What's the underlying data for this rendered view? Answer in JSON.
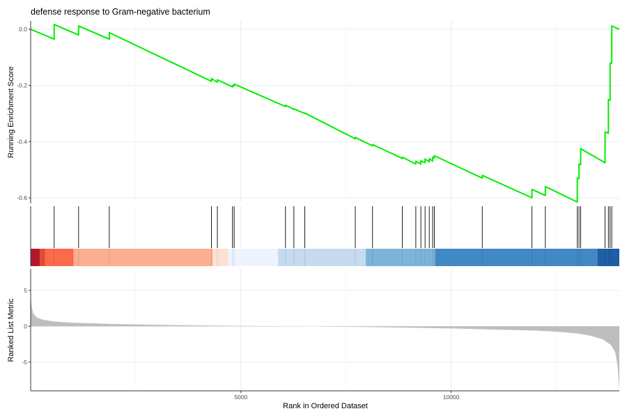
{
  "chart_data": {
    "type": "line",
    "title": "defense response to Gram-negative bacterium",
    "xlabel": "Rank in Ordered Dataset",
    "xlim": [
      0,
      14000
    ],
    "x_ticks": [
      5000,
      10000
    ],
    "grid": true,
    "enrichment_panel": {
      "ylabel": "Running Enrichment Score",
      "ylim": [
        -0.62,
        0.03
      ],
      "y_ticks": [
        "0.0",
        "-0.2",
        "-0.4",
        "-0.6"
      ],
      "line_color": "#00ee00",
      "series": [
        {
          "x": [
            0,
            560,
            560,
            1140,
            1140,
            1870,
            1870,
            4300,
            4300,
            4400,
            4440,
            4440,
            4800,
            4800,
            4840,
            4840,
            6060,
            6060,
            6260,
            6260,
            6520,
            6520,
            7720,
            7720,
            8130,
            8130,
            8840,
            8840,
            9160,
            9160,
            9280,
            9280,
            9380,
            9380,
            9480,
            9480,
            9560,
            9560,
            9600,
            9600,
            10740,
            10740,
            11920,
            11920,
            12240,
            12240,
            13000,
            13000,
            13040,
            13040,
            13080,
            13080,
            13660,
            13660,
            13740,
            13740,
            13780,
            13780,
            13820,
            13820,
            14000
          ],
          "y": [
            0.0,
            -0.035,
            0.017,
            -0.02,
            0.012,
            -0.035,
            -0.012,
            -0.185,
            -0.175,
            -0.185,
            -0.188,
            -0.18,
            -0.205,
            -0.2,
            -0.202,
            -0.195,
            -0.275,
            -0.27,
            -0.285,
            -0.283,
            -0.3,
            -0.298,
            -0.39,
            -0.385,
            -0.415,
            -0.41,
            -0.46,
            -0.455,
            -0.48,
            -0.47,
            -0.48,
            -0.468,
            -0.475,
            -0.462,
            -0.472,
            -0.46,
            -0.47,
            -0.455,
            -0.458,
            -0.45,
            -0.53,
            -0.52,
            -0.6,
            -0.57,
            -0.592,
            -0.56,
            -0.615,
            -0.53,
            -0.532,
            -0.48,
            -0.482,
            -0.425,
            -0.475,
            -0.365,
            -0.37,
            -0.25,
            -0.252,
            -0.12,
            -0.12,
            0.012,
            0.0
          ]
        }
      ]
    },
    "gene_hits": {
      "positions": [
        560,
        1140,
        1870,
        4300,
        4440,
        4800,
        4840,
        6060,
        6260,
        6520,
        7720,
        8130,
        8840,
        9160,
        9280,
        9380,
        9480,
        9560,
        9600,
        10740,
        11920,
        12240,
        13000,
        13040,
        13080,
        13660,
        13740,
        13780,
        13820
      ]
    },
    "heat_bar": {
      "segments": [
        {
          "start": 0,
          "end": 220,
          "color": "#b2182b"
        },
        {
          "start": 220,
          "end": 340,
          "color": "#e34a33"
        },
        {
          "start": 340,
          "end": 1020,
          "color": "#fb6a4a"
        },
        {
          "start": 1020,
          "end": 4330,
          "color": "#fcae91"
        },
        {
          "start": 4330,
          "end": 4700,
          "color": "#fee0d2"
        },
        {
          "start": 4700,
          "end": 5880,
          "color": "#eff3ff"
        },
        {
          "start": 5880,
          "end": 7970,
          "color": "#c6dbef"
        },
        {
          "start": 7970,
          "end": 9620,
          "color": "#7db5da"
        },
        {
          "start": 9620,
          "end": 13480,
          "color": "#4189c4"
        },
        {
          "start": 13480,
          "end": 14000,
          "color": "#1f5fa8"
        }
      ]
    },
    "ranked_panel": {
      "ylabel": "Ranked List Metric",
      "ylim": [
        -9,
        8
      ],
      "y_ticks": [
        "5",
        "0",
        "-5"
      ],
      "fill_color": "#bebebe",
      "series": [
        {
          "x": [
            0,
            20,
            60,
            150,
            300,
            600,
            1000,
            2000,
            3000,
            4000,
            5000,
            6000,
            6800,
            7000,
            8000,
            9000,
            10000,
            11000,
            12000,
            12500,
            13000,
            13300,
            13600,
            13800,
            13900,
            13960,
            14000
          ],
          "y": [
            4.2,
            3.0,
            1.8,
            1.2,
            0.9,
            0.65,
            0.5,
            0.32,
            0.2,
            0.12,
            0.05,
            0.02,
            0.0,
            -0.03,
            -0.1,
            -0.2,
            -0.3,
            -0.45,
            -0.6,
            -0.75,
            -1.0,
            -1.3,
            -1.8,
            -2.6,
            -3.6,
            -5.5,
            -9.0
          ]
        }
      ]
    }
  }
}
